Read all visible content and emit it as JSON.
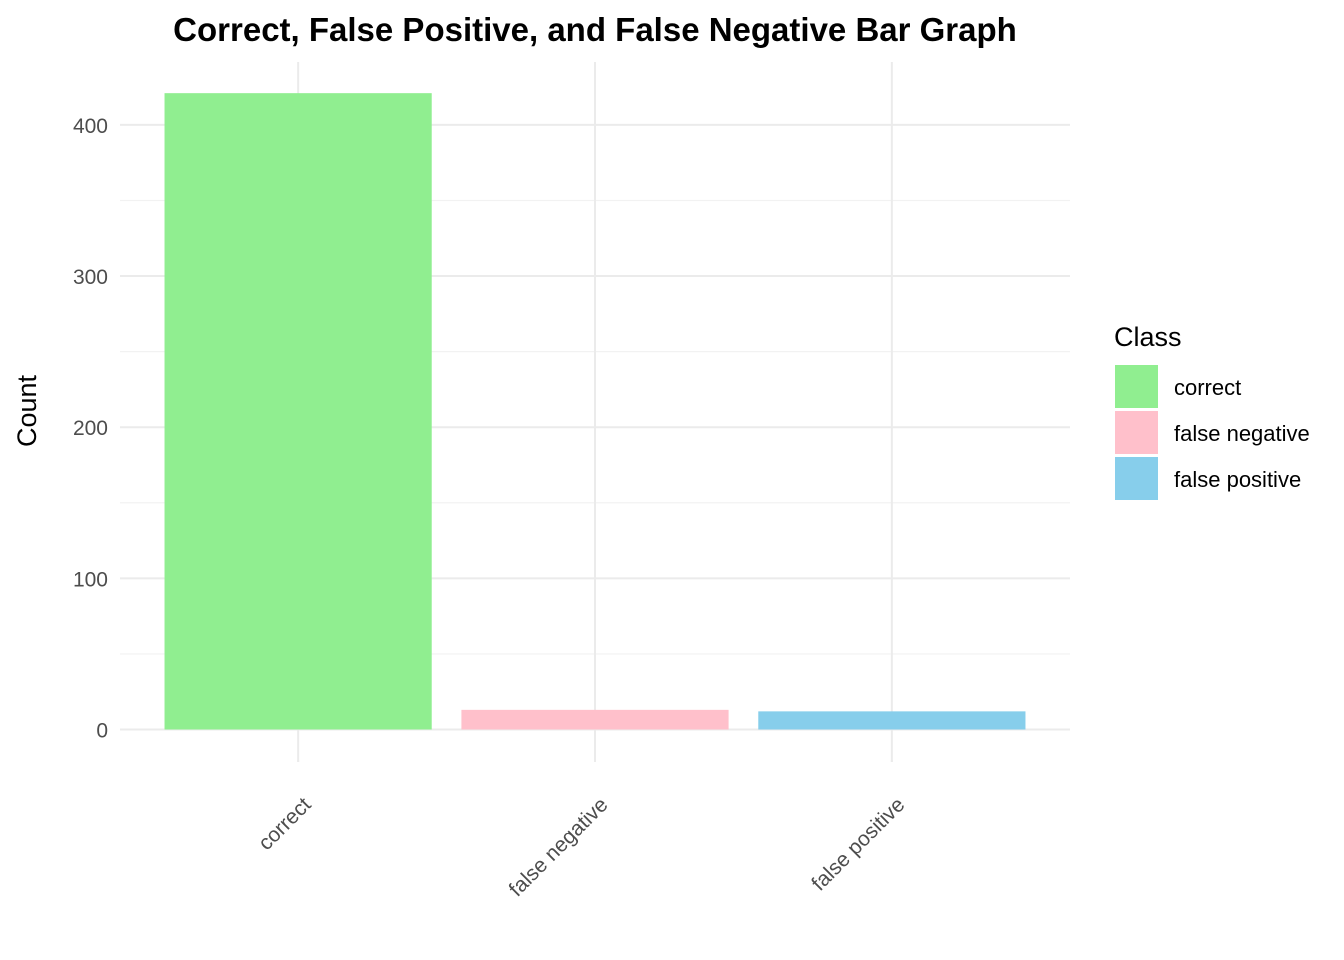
{
  "chart_data": {
    "type": "bar",
    "title": "Correct, False Positive, and False Negative Bar Graph",
    "xlabel": "",
    "ylabel": "Count",
    "categories": [
      "correct",
      "false negative",
      "false positive"
    ],
    "values": [
      421,
      13,
      12
    ],
    "colors": [
      "#90EE90",
      "#FFC0CB",
      "#87CEEB"
    ],
    "ylim": [
      0,
      442
    ],
    "yticks": [
      0,
      100,
      200,
      300,
      400
    ],
    "ytick_labels": [
      "0",
      "100",
      "200",
      "300",
      "400"
    ],
    "grid": true,
    "legend": {
      "title": "Class",
      "placement": "right",
      "entries": [
        "correct",
        "false negative",
        "false positive"
      ]
    }
  }
}
